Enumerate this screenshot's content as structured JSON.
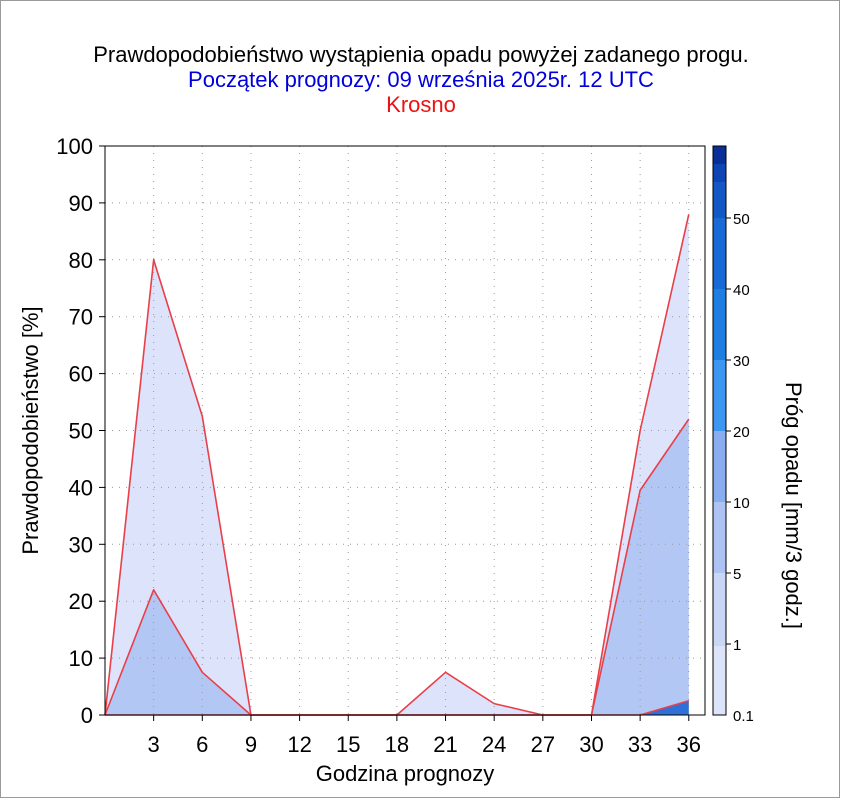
{
  "header": {
    "title": "Prawdopodobieństwo wystąpienia opadu powyżej zadanego progu.",
    "subtitle": "Początek prognozy: 09 września 2025r. 12 UTC",
    "location": "Krosno"
  },
  "colors": {
    "series_line": "#e8404a",
    "fill_low": "#dde3fa",
    "fill_mid": "#b3c7f5",
    "fill_high": "#2f6fd8",
    "colorbar": [
      "#eaeefb",
      "#dde4fa",
      "#c9d6f6",
      "#adc3f3",
      "#88aef0",
      "#3d96f0",
      "#1f7ee2",
      "#186ad6",
      "#1458c6",
      "#0f44b4",
      "#0a2e98"
    ],
    "grid": "#999999"
  },
  "chart_data": {
    "type": "area",
    "xlabel": "Godzina prognozy",
    "ylabel": "Prawdopodobieństwo [%]",
    "xlim": [
      0,
      37
    ],
    "ylim": [
      0,
      100
    ],
    "grid": true,
    "x": [
      0,
      3,
      6,
      9,
      12,
      15,
      18,
      21,
      24,
      27,
      30,
      33,
      36
    ],
    "x_ticks": [
      "3",
      "6",
      "9",
      "12",
      "15",
      "18",
      "21",
      "24",
      "27",
      "30",
      "33",
      "36"
    ],
    "y_ticks": [
      "0",
      "10",
      "20",
      "30",
      "40",
      "50",
      "60",
      "70",
      "80",
      "90",
      "100"
    ],
    "series": [
      {
        "threshold": 0.1,
        "values": [
          0,
          80,
          52.5,
          0,
          0,
          0,
          0,
          7.5,
          2,
          0,
          0,
          50,
          88
        ]
      },
      {
        "threshold": 1,
        "values": [
          0,
          22,
          7.5,
          0,
          0,
          0,
          0,
          0,
          0,
          0,
          0,
          39.5,
          52
        ]
      },
      {
        "threshold": 5,
        "values": [
          0,
          0,
          0,
          0,
          0,
          0,
          0,
          0,
          0,
          0,
          0,
          0,
          2.5
        ]
      }
    ],
    "colorbar": {
      "label": "Próg opadu [mm/3 godz.]",
      "tick_labels": [
        "0.1",
        "1",
        "5",
        "10",
        "20",
        "30",
        "40",
        "50"
      ]
    }
  }
}
